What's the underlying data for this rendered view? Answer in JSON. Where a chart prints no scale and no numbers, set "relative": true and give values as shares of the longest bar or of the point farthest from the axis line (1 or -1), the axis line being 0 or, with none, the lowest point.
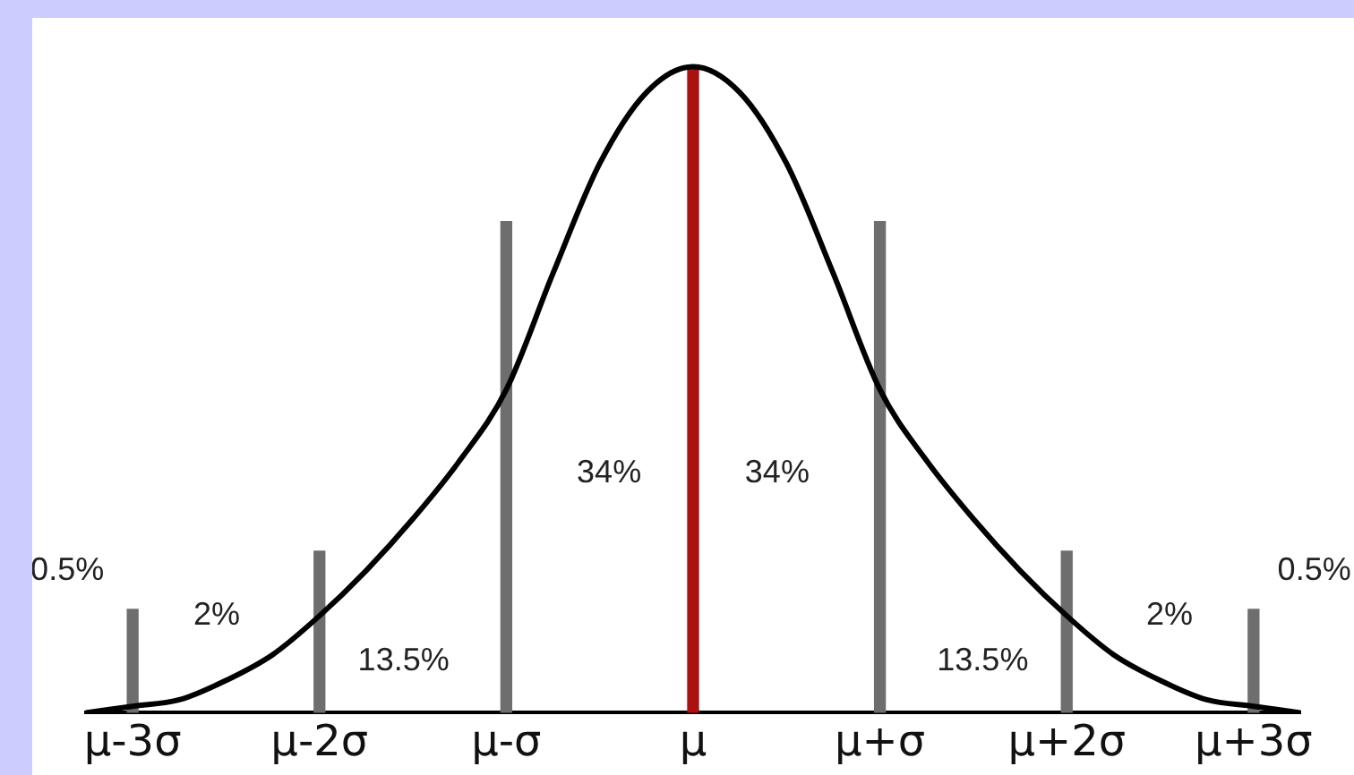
{
  "chart_data": {
    "type": "line",
    "relative": true,
    "categories": [
      null,
      "μ-3σ",
      null,
      null,
      null,
      "μ-2σ",
      null,
      null,
      null,
      "μ-σ",
      null,
      null,
      null,
      "μ",
      null,
      null,
      null,
      "μ+σ",
      null,
      null,
      null,
      "μ+2σ",
      null,
      null,
      null,
      "μ+3σ",
      null
    ],
    "series": [
      {
        "color": "#000000",
        "values": [
          0,
          0.01,
          0.02,
          0.05,
          0.09,
          0.15,
          0.22,
          0.3,
          0.39,
          0.5,
          0.68,
          0.85,
          0.96,
          1,
          0.96,
          0.85,
          0.68,
          0.5,
          0.39,
          0.3,
          0.22,
          0.15,
          0.09,
          0.05,
          0.02,
          0.01,
          0
        ]
      },
      {
        "type": "bar",
        "values": [
          null,
          0.16,
          null,
          null,
          null,
          0.25,
          null,
          null,
          null,
          0.76,
          null,
          null,
          null,
          1,
          null,
          null,
          null,
          0.76,
          null,
          null,
          null,
          0.25,
          null,
          null,
          null,
          0.16,
          null
        ],
        "colors": [
          "#6e6e6e",
          "#6e6e6e",
          "#6e6e6e",
          "#6e6e6e",
          "#6e6e6e",
          "#6e6e6e",
          "#6e6e6e",
          "#6e6e6e",
          "#6e6e6e",
          "#6e6e6e",
          "#6e6e6e",
          "#6e6e6e",
          "#6e6e6e",
          "#aa1111",
          "#6e6e6e",
          "#6e6e6e",
          "#6e6e6e",
          "#6e6e6e",
          "#6e6e6e",
          "#6e6e6e",
          "#6e6e6e",
          "#6e6e6e",
          "#6e6e6e",
          "#6e6e6e",
          "#6e6e6e",
          "#6e6e6e",
          "#6e6e6e"
        ]
      }
    ],
    "annotations": [
      "0.5%",
      "2%",
      "13.5%",
      "34%",
      "34%",
      "13.5%",
      "2%",
      "0.5%"
    ]
  }
}
